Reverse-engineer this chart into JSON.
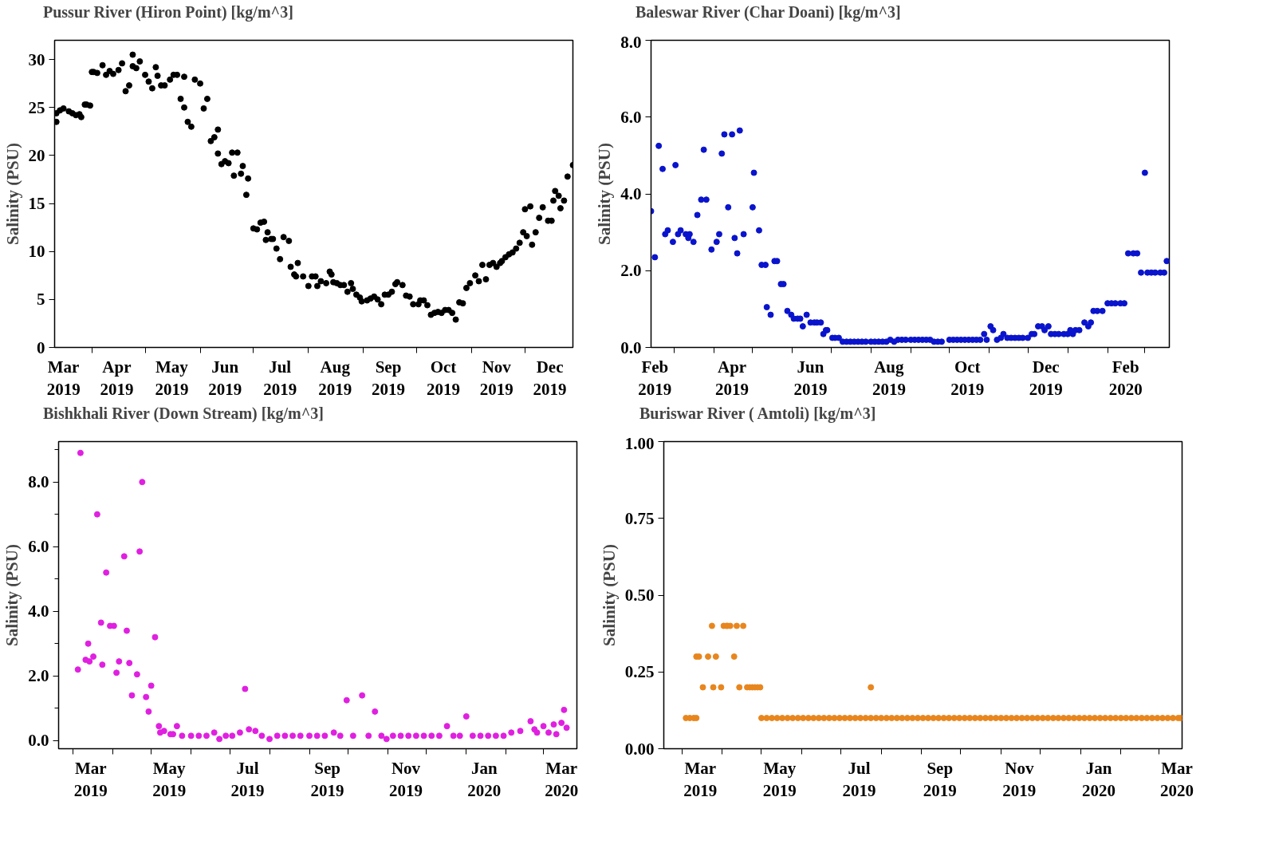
{
  "chart_data": [
    {
      "type": "scatter",
      "ylabel": "Salinity (PSU)",
      "legend": "top",
      "marker": "circle",
      "grid": false,
      "xlim": [
        "2019-03-11",
        "2019-12-28"
      ],
      "ylim": [
        0,
        32
      ],
      "xticks": [
        {
          "value": "2019-03-16",
          "label": "Mar\n2019"
        },
        {
          "value": "2019-04-01",
          "label": null
        },
        {
          "value": "2019-04-15",
          "label": "Apr\n2019"
        },
        {
          "value": "2019-05-01",
          "label": null
        },
        {
          "value": "2019-05-16",
          "label": "May\n2019"
        },
        {
          "value": "2019-06-01",
          "label": null
        },
        {
          "value": "2019-06-15",
          "label": "Jun\n2019"
        },
        {
          "value": "2019-07-01",
          "label": null
        },
        {
          "value": "2019-07-16",
          "label": "Jul\n2019"
        },
        {
          "value": "2019-08-01",
          "label": null
        },
        {
          "value": "2019-08-16",
          "label": "Aug\n2019"
        },
        {
          "value": "2019-09-01",
          "label": null
        },
        {
          "value": "2019-09-15",
          "label": "Sep\n2019"
        },
        {
          "value": "2019-10-01",
          "label": null
        },
        {
          "value": "2019-10-16",
          "label": "Oct\n2019"
        },
        {
          "value": "2019-11-01",
          "label": null
        },
        {
          "value": "2019-11-15",
          "label": "Nov\n2019"
        },
        {
          "value": "2019-12-01",
          "label": null
        },
        {
          "value": "2019-12-15",
          "label": "Dec\n2019"
        }
      ],
      "yticks": [
        0,
        5,
        10,
        15,
        20,
        25,
        30
      ],
      "series": [
        {
          "name": "Pussur River (Hiron Point) [kg/m^3]",
          "color": "#000000",
          "x": [
            "2019-03-12",
            "2019-03-12",
            "2019-03-14",
            "2019-03-16",
            "2019-03-19",
            "2019-03-21",
            "2019-03-23",
            "2019-03-25",
            "2019-03-26",
            "2019-03-28",
            "2019-03-29",
            "2019-03-31",
            "2019-04-01",
            "2019-04-02",
            "2019-04-04",
            "2019-04-07",
            "2019-04-09",
            "2019-04-11",
            "2019-04-13",
            "2019-04-16",
            "2019-04-18",
            "2019-04-20",
            "2019-04-22",
            "2019-04-24",
            "2019-04-24",
            "2019-04-26",
            "2019-04-28",
            "2019-05-01",
            "2019-05-03",
            "2019-05-05",
            "2019-05-07",
            "2019-05-08",
            "2019-05-10",
            "2019-05-12",
            "2019-05-15",
            "2019-05-17",
            "2019-05-19",
            "2019-05-21",
            "2019-05-23",
            "2019-05-23",
            "2019-05-25",
            "2019-05-27",
            "2019-05-29",
            "2019-06-01",
            "2019-06-03",
            "2019-06-05",
            "2019-06-07",
            "2019-06-09",
            "2019-06-11",
            "2019-06-11",
            "2019-06-13",
            "2019-06-15",
            "2019-06-17",
            "2019-06-19",
            "2019-06-20",
            "2019-06-22",
            "2019-06-24",
            "2019-06-25",
            "2019-06-27",
            "2019-06-28",
            "2019-07-01",
            "2019-07-03",
            "2019-07-05",
            "2019-07-07",
            "2019-07-08",
            "2019-07-09",
            "2019-07-11",
            "2019-07-12",
            "2019-07-14",
            "2019-07-16",
            "2019-07-18",
            "2019-07-21",
            "2019-07-22",
            "2019-07-24",
            "2019-07-25",
            "2019-07-26",
            "2019-07-29",
            "2019-08-01",
            "2019-08-03",
            "2019-08-05",
            "2019-08-06",
            "2019-08-08",
            "2019-08-11",
            "2019-08-13",
            "2019-08-14",
            "2019-08-15",
            "2019-08-17",
            "2019-08-19",
            "2019-08-21",
            "2019-08-23",
            "2019-08-25",
            "2019-08-26",
            "2019-08-28",
            "2019-08-30",
            "2019-08-31",
            "2019-09-03",
            "2019-09-05",
            "2019-09-07",
            "2019-09-09",
            "2019-09-11",
            "2019-09-13",
            "2019-09-15",
            "2019-09-17",
            "2019-09-19",
            "2019-09-20",
            "2019-09-23",
            "2019-09-25",
            "2019-09-27",
            "2019-09-29",
            "2019-10-02",
            "2019-10-03",
            "2019-10-05",
            "2019-10-07",
            "2019-10-09",
            "2019-10-11",
            "2019-10-13",
            "2019-10-15",
            "2019-10-17",
            "2019-10-19",
            "2019-10-21",
            "2019-10-23",
            "2019-10-25",
            "2019-10-27",
            "2019-10-29",
            "2019-10-31",
            "2019-11-03",
            "2019-11-05",
            "2019-11-07",
            "2019-11-09",
            "2019-11-11",
            "2019-11-13",
            "2019-11-15",
            "2019-11-17",
            "2019-11-18",
            "2019-11-20",
            "2019-11-22",
            "2019-11-24",
            "2019-11-26",
            "2019-11-28",
            "2019-11-30",
            "2019-12-01",
            "2019-12-02",
            "2019-12-04",
            "2019-12-05",
            "2019-12-07",
            "2019-12-09",
            "2019-12-11",
            "2019-12-14",
            "2019-12-16",
            "2019-12-17",
            "2019-12-18",
            "2019-12-20",
            "2019-12-21",
            "2019-12-23",
            "2019-12-25",
            "2019-12-28"
          ],
          "values": [
            23.5,
            24.4,
            24.7,
            24.9,
            24.6,
            24.4,
            24.2,
            24.3,
            24.0,
            25.3,
            25.3,
            25.2,
            28.7,
            28.7,
            28.6,
            29.4,
            28.4,
            28.8,
            28.5,
            28.9,
            29.6,
            26.7,
            27.3,
            30.5,
            29.3,
            29.1,
            29.8,
            28.4,
            27.7,
            27.0,
            29.2,
            28.3,
            27.3,
            27.3,
            27.9,
            28.4,
            28.4,
            25.9,
            25.0,
            28.2,
            23.5,
            23.0,
            27.9,
            27.5,
            24.9,
            25.9,
            21.5,
            21.9,
            22.7,
            20.2,
            19.1,
            19.4,
            19.2,
            20.3,
            17.9,
            20.3,
            18.1,
            18.9,
            15.9,
            17.6,
            12.4,
            12.3,
            13.0,
            13.1,
            11.2,
            12.0,
            11.3,
            11.3,
            10.3,
            9.2,
            11.5,
            11.1,
            8.4,
            7.6,
            7.4,
            8.8,
            7.4,
            6.4,
            7.4,
            7.4,
            6.4,
            6.9,
            6.7,
            7.9,
            7.6,
            6.8,
            6.7,
            6.5,
            6.5,
            5.8,
            6.7,
            6.1,
            5.5,
            5.2,
            4.8,
            4.9,
            5.1,
            5.3,
            5.0,
            4.5,
            5.5,
            5.5,
            5.8,
            6.6,
            6.8,
            6.5,
            5.4,
            5.3,
            4.5,
            4.5,
            4.9,
            4.9,
            4.4,
            3.4,
            3.6,
            3.7,
            3.6,
            3.9,
            3.9,
            3.6,
            2.9,
            4.7,
            4.6,
            6.2,
            6.7,
            7.5,
            6.9,
            8.6,
            7.1,
            8.6,
            8.8,
            8.4,
            8.8,
            9.0,
            9.4,
            9.7,
            9.9,
            10.3,
            10.9,
            12.0,
            14.4,
            11.6,
            14.7,
            10.7,
            12.0,
            13.5,
            14.6,
            13.2,
            13.2,
            15.3,
            16.3,
            15.8,
            14.5,
            15.3,
            17.8,
            19.0
          ]
        }
      ]
    },
    {
      "type": "scatter",
      "ylabel": "Salinity (PSU)",
      "legend": "top",
      "marker": "circle",
      "grid": false,
      "xlim": [
        "2019-02-11",
        "2020-03-20"
      ],
      "ylim": [
        0,
        8
      ],
      "xticks": [
        {
          "value": "2019-02-14",
          "label": "Feb\n2019"
        },
        {
          "value": "2019-03-01",
          "label": null
        },
        {
          "value": "2019-04-01",
          "label": null
        },
        {
          "value": "2019-04-15",
          "label": "Apr\n2019"
        },
        {
          "value": "2019-05-01",
          "label": null
        },
        {
          "value": "2019-06-01",
          "label": null
        },
        {
          "value": "2019-06-15",
          "label": "Jun\n2019"
        },
        {
          "value": "2019-07-01",
          "label": null
        },
        {
          "value": "2019-08-01",
          "label": null
        },
        {
          "value": "2019-08-15",
          "label": "Aug\n2019"
        },
        {
          "value": "2019-09-01",
          "label": null
        },
        {
          "value": "2019-10-01",
          "label": null
        },
        {
          "value": "2019-10-15",
          "label": "Oct\n2019"
        },
        {
          "value": "2019-11-01",
          "label": null
        },
        {
          "value": "2019-12-01",
          "label": null
        },
        {
          "value": "2019-12-15",
          "label": "Dec\n2019"
        },
        {
          "value": "2020-01-01",
          "label": null
        },
        {
          "value": "2020-02-01",
          "label": null
        },
        {
          "value": "2020-02-15",
          "label": "Feb\n2020"
        },
        {
          "value": "2020-03-01",
          "label": null
        }
      ],
      "yticks": [
        {
          "value": 0,
          "label": "0.0"
        },
        {
          "value": 2,
          "label": "2.0"
        },
        {
          "value": 4,
          "label": "4.0"
        },
        {
          "value": 6,
          "label": "6.0"
        },
        {
          "value": 8,
          "label": "8.0"
        }
      ],
      "series": [
        {
          "name": "Baleswar River (Char Doani) [kg/m^3]",
          "color": "#0a14cc",
          "x": [
            "2019-02-11",
            "2019-02-14",
            "2019-02-17",
            "2019-02-20",
            "2019-02-22",
            "2019-02-24",
            "2019-02-28",
            "2019-03-02",
            "2019-03-04",
            "2019-03-06",
            "2019-03-10",
            "2019-03-12",
            "2019-03-13",
            "2019-03-16",
            "2019-03-19",
            "2019-03-22",
            "2019-03-24",
            "2019-03-26",
            "2019-03-30",
            "2019-04-03",
            "2019-04-05",
            "2019-04-07",
            "2019-04-09",
            "2019-04-12",
            "2019-04-15",
            "2019-04-17",
            "2019-04-19",
            "2019-04-21",
            "2019-04-24",
            "2019-05-01",
            "2019-05-02",
            "2019-05-06",
            "2019-05-08",
            "2019-05-11",
            "2019-05-12",
            "2019-05-15",
            "2019-05-18",
            "2019-05-20",
            "2019-05-23",
            "2019-05-25",
            "2019-05-28",
            "2019-05-31",
            "2019-06-02",
            "2019-06-05",
            "2019-06-07",
            "2019-06-09",
            "2019-06-12",
            "2019-06-15",
            "2019-06-18",
            "2019-06-20",
            "2019-06-23",
            "2019-06-25",
            "2019-06-27",
            "2019-06-28",
            "2019-07-02",
            "2019-07-04",
            "2019-07-07",
            "2019-07-10",
            "2019-07-13",
            "2019-07-16",
            "2019-07-19",
            "2019-07-22",
            "2019-07-25",
            "2019-07-28",
            "2019-08-01",
            "2019-08-04",
            "2019-08-07",
            "2019-08-10",
            "2019-08-13",
            "2019-08-16",
            "2019-08-19",
            "2019-08-22",
            "2019-08-25",
            "2019-08-28",
            "2019-09-01",
            "2019-09-04",
            "2019-09-07",
            "2019-09-10",
            "2019-09-13",
            "2019-09-16",
            "2019-09-19",
            "2019-09-22",
            "2019-09-25",
            "2019-10-01",
            "2019-10-04",
            "2019-10-07",
            "2019-10-10",
            "2019-10-13",
            "2019-10-16",
            "2019-10-19",
            "2019-10-22",
            "2019-10-25",
            "2019-10-28",
            "2019-10-30",
            "2019-11-02",
            "2019-11-04",
            "2019-11-07",
            "2019-11-10",
            "2019-11-12",
            "2019-11-15",
            "2019-11-18",
            "2019-11-21",
            "2019-11-24",
            "2019-11-27",
            "2019-12-01",
            "2019-12-04",
            "2019-12-06",
            "2019-12-09",
            "2019-12-12",
            "2019-12-14",
            "2019-12-17",
            "2019-12-19",
            "2019-12-22",
            "2019-12-25",
            "2019-12-29",
            "2020-01-01",
            "2020-01-03",
            "2020-01-05",
            "2020-01-07",
            "2020-01-10",
            "2020-01-14",
            "2020-01-17",
            "2020-01-19",
            "2020-01-21",
            "2020-01-24",
            "2020-01-28",
            "2020-02-01",
            "2020-02-04",
            "2020-02-07",
            "2020-02-11",
            "2020-02-14",
            "2020-02-17",
            "2020-02-21",
            "2020-02-24",
            "2020-02-27",
            "2020-03-01",
            "2020-03-03",
            "2020-03-06",
            "2020-03-09",
            "2020-03-13",
            "2020-03-16",
            "2020-03-18"
          ],
          "values": [
            3.55,
            2.35,
            5.25,
            4.65,
            2.95,
            3.05,
            2.75,
            4.75,
            2.95,
            3.05,
            2.95,
            2.85,
            2.95,
            2.75,
            3.45,
            3.85,
            5.15,
            3.85,
            2.55,
            2.75,
            2.95,
            5.05,
            5.55,
            3.65,
            5.55,
            2.85,
            2.45,
            5.65,
            2.95,
            3.65,
            4.55,
            3.05,
            2.15,
            2.15,
            1.05,
            0.85,
            2.25,
            2.25,
            1.65,
            1.65,
            0.95,
            0.85,
            0.75,
            0.75,
            0.75,
            0.55,
            0.85,
            0.65,
            0.65,
            0.65,
            0.65,
            0.35,
            0.45,
            0.45,
            0.25,
            0.25,
            0.25,
            0.15,
            0.15,
            0.15,
            0.15,
            0.15,
            0.15,
            0.15,
            0.15,
            0.15,
            0.15,
            0.15,
            0.15,
            0.2,
            0.15,
            0.2,
            0.2,
            0.2,
            0.2,
            0.2,
            0.2,
            0.2,
            0.2,
            0.2,
            0.15,
            0.15,
            0.15,
            0.2,
            0.2,
            0.2,
            0.2,
            0.2,
            0.2,
            0.2,
            0.2,
            0.2,
            0.35,
            0.2,
            0.55,
            0.45,
            0.2,
            0.25,
            0.35,
            0.25,
            0.25,
            0.25,
            0.25,
            0.25,
            0.25,
            0.35,
            0.35,
            0.55,
            0.55,
            0.45,
            0.55,
            0.35,
            0.35,
            0.35,
            0.35,
            0.35,
            0.45,
            0.35,
            0.45,
            0.45,
            0.65,
            0.55,
            0.65,
            0.95,
            0.95,
            0.95,
            1.15,
            1.15,
            1.15,
            1.15,
            1.15,
            2.45,
            2.45,
            2.45,
            1.95,
            4.55,
            1.95,
            1.95,
            1.95,
            1.95,
            1.95,
            2.25
          ]
        }
      ]
    },
    {
      "type": "scatter",
      "ylabel": "Salinity (PSU)",
      "legend": "top",
      "marker": "circle",
      "grid": false,
      "xlim": [
        "2019-02-18",
        "2020-03-27"
      ],
      "ylim": [
        -0.25,
        9.25
      ],
      "xticks": [
        {
          "value": "2019-03-01",
          "label": null
        },
        {
          "value": "2019-03-15",
          "label": "Mar\n2019"
        },
        {
          "value": "2019-04-01",
          "label": null
        },
        {
          "value": "2019-05-01",
          "label": null
        },
        {
          "value": "2019-05-15",
          "label": "May\n2019"
        },
        {
          "value": "2019-06-01",
          "label": null
        },
        {
          "value": "2019-07-01",
          "label": null
        },
        {
          "value": "2019-07-15",
          "label": "Jul\n2019"
        },
        {
          "value": "2019-08-01",
          "label": null
        },
        {
          "value": "2019-09-01",
          "label": null
        },
        {
          "value": "2019-09-15",
          "label": "Sep\n2019"
        },
        {
          "value": "2019-10-01",
          "label": null
        },
        {
          "value": "2019-11-01",
          "label": null
        },
        {
          "value": "2019-11-15",
          "label": "Nov\n2019"
        },
        {
          "value": "2019-12-01",
          "label": null
        },
        {
          "value": "2020-01-01",
          "label": null
        },
        {
          "value": "2020-01-15",
          "label": "Jan\n2020"
        },
        {
          "value": "2020-02-01",
          "label": null
        },
        {
          "value": "2020-03-01",
          "label": null
        },
        {
          "value": "2020-03-15",
          "label": "Mar\n2020"
        }
      ],
      "yticks": [
        {
          "value": 0,
          "label": "0.0"
        },
        {
          "value": 1,
          "label": null
        },
        {
          "value": 2,
          "label": "2.0"
        },
        {
          "value": 3,
          "label": null
        },
        {
          "value": 4,
          "label": "4.0"
        },
        {
          "value": 5,
          "label": null
        },
        {
          "value": 6,
          "label": "6.0"
        },
        {
          "value": 7,
          "label": null
        },
        {
          "value": 8,
          "label": "8.0"
        },
        {
          "value": 9,
          "label": null
        }
      ],
      "series": [
        {
          "name": "Bishkhali River (Down Stream) [kg/m^3]",
          "color": "#e020e0",
          "x": [
            "2019-03-05",
            "2019-03-07",
            "2019-03-11",
            "2019-03-13",
            "2019-03-14",
            "2019-03-17",
            "2019-03-20",
            "2019-03-23",
            "2019-03-24",
            "2019-03-27",
            "2019-03-30",
            "2019-04-02",
            "2019-04-04",
            "2019-04-06",
            "2019-04-10",
            "2019-04-12",
            "2019-04-14",
            "2019-04-16",
            "2019-04-20",
            "2019-04-22",
            "2019-04-24",
            "2019-04-27",
            "2019-04-29",
            "2019-05-01",
            "2019-05-04",
            "2019-05-07",
            "2019-05-08",
            "2019-05-11",
            "2019-05-16",
            "2019-05-18",
            "2019-05-21",
            "2019-05-25",
            "2019-06-01",
            "2019-06-07",
            "2019-06-13",
            "2019-06-19",
            "2019-06-23",
            "2019-06-28",
            "2019-07-03",
            "2019-07-09",
            "2019-07-13",
            "2019-07-16",
            "2019-07-21",
            "2019-07-26",
            "2019-08-01",
            "2019-08-07",
            "2019-08-13",
            "2019-08-19",
            "2019-08-25",
            "2019-09-01",
            "2019-09-07",
            "2019-09-13",
            "2019-09-20",
            "2019-09-25",
            "2019-09-30",
            "2019-10-05",
            "2019-10-12",
            "2019-10-17",
            "2019-10-22",
            "2019-10-27",
            "2019-10-31",
            "2019-11-05",
            "2019-11-11",
            "2019-11-17",
            "2019-11-23",
            "2019-11-29",
            "2019-12-05",
            "2019-12-11",
            "2019-12-17",
            "2019-12-22",
            "2019-12-27",
            "2020-01-01",
            "2020-01-06",
            "2020-01-12",
            "2020-01-18",
            "2020-01-24",
            "2020-01-30",
            "2020-02-05",
            "2020-02-12",
            "2020-02-20",
            "2020-02-23",
            "2020-02-25",
            "2020-03-01",
            "2020-03-05",
            "2020-03-09",
            "2020-03-11",
            "2020-03-15",
            "2020-03-17",
            "2020-03-19"
          ],
          "values": [
            2.2,
            8.9,
            2.5,
            3.0,
            2.45,
            2.6,
            7.0,
            3.65,
            2.35,
            5.2,
            3.55,
            3.55,
            2.1,
            2.45,
            5.7,
            3.4,
            2.4,
            1.4,
            2.05,
            5.85,
            8.0,
            1.35,
            0.9,
            1.7,
            3.2,
            0.45,
            0.25,
            0.3,
            0.2,
            0.2,
            0.45,
            0.15,
            0.15,
            0.15,
            0.15,
            0.25,
            0.05,
            0.15,
            0.15,
            0.25,
            1.6,
            0.35,
            0.3,
            0.15,
            0.05,
            0.15,
            0.15,
            0.15,
            0.15,
            0.15,
            0.15,
            0.15,
            0.25,
            0.15,
            1.25,
            0.15,
            1.4,
            0.15,
            0.9,
            0.15,
            0.05,
            0.15,
            0.15,
            0.15,
            0.15,
            0.15,
            0.15,
            0.15,
            0.45,
            0.15,
            0.15,
            0.75,
            0.15,
            0.15,
            0.15,
            0.15,
            0.15,
            0.25,
            0.3,
            0.6,
            0.35,
            0.25,
            0.45,
            0.25,
            0.5,
            0.2,
            0.55,
            0.95,
            0.4
          ]
        }
      ]
    },
    {
      "type": "scatter",
      "ylabel": "Salinity (PSU)",
      "legend": "top",
      "marker": "circle",
      "grid": false,
      "xlim": [
        "2019-02-15",
        "2020-03-19"
      ],
      "ylim": [
        0,
        1
      ],
      "xticks": [
        {
          "value": "2019-03-01",
          "label": null
        },
        {
          "value": "2019-03-15",
          "label": "Mar\n2019"
        },
        {
          "value": "2019-04-01",
          "label": null
        },
        {
          "value": "2019-05-01",
          "label": null
        },
        {
          "value": "2019-05-15",
          "label": "May\n2019"
        },
        {
          "value": "2019-06-01",
          "label": null
        },
        {
          "value": "2019-07-01",
          "label": null
        },
        {
          "value": "2019-07-15",
          "label": "Jul\n2019"
        },
        {
          "value": "2019-08-01",
          "label": null
        },
        {
          "value": "2019-09-01",
          "label": null
        },
        {
          "value": "2019-09-15",
          "label": "Sep\n2019"
        },
        {
          "value": "2019-10-01",
          "label": null
        },
        {
          "value": "2019-11-01",
          "label": null
        },
        {
          "value": "2019-11-15",
          "label": "Nov\n2019"
        },
        {
          "value": "2019-12-01",
          "label": null
        },
        {
          "value": "2020-01-01",
          "label": null
        },
        {
          "value": "2020-01-15",
          "label": "Jan\n2020"
        },
        {
          "value": "2020-02-01",
          "label": null
        },
        {
          "value": "2020-03-01",
          "label": null
        },
        {
          "value": "2020-03-15",
          "label": "Mar\n2020"
        }
      ],
      "yticks": [
        {
          "value": 0,
          "label": "0.00"
        },
        0.25,
        {
          "value": 0.5,
          "label": "0.50"
        },
        0.75,
        {
          "value": 1,
          "label": "1.00"
        }
      ],
      "series": [
        {
          "name": "Buriswar River ( Amtoli) [kg/m^3]",
          "color": "#e8861e",
          "x": [
            "2019-03-04",
            "2019-03-07",
            "2019-03-10",
            "2019-03-12",
            "2019-03-12",
            "2019-03-14",
            "2019-03-17",
            "2019-03-21",
            "2019-03-24",
            "2019-03-25",
            "2019-03-27",
            "2019-03-31",
            "2019-04-02",
            "2019-04-04",
            "2019-04-05",
            "2019-04-07",
            "2019-04-10",
            "2019-04-12",
            "2019-04-14",
            "2019-04-17",
            "2019-04-20",
            "2019-04-22",
            "2019-04-24",
            "2019-04-26",
            "2019-04-28",
            "2019-04-30",
            "2019-05-01",
            "2019-05-05",
            "2019-05-09",
            "2019-05-13",
            "2019-05-17",
            "2019-05-21",
            "2019-05-25",
            "2019-05-29",
            "2019-06-02",
            "2019-06-06",
            "2019-06-10",
            "2019-06-14",
            "2019-06-18",
            "2019-06-22",
            "2019-06-26",
            "2019-06-30",
            "2019-07-04",
            "2019-07-08",
            "2019-07-12",
            "2019-07-16",
            "2019-07-20",
            "2019-07-24",
            "2019-07-24",
            "2019-07-28",
            "2019-08-01",
            "2019-08-05",
            "2019-08-09",
            "2019-08-13",
            "2019-08-17",
            "2019-08-21",
            "2019-08-25",
            "2019-08-29",
            "2019-09-02",
            "2019-09-06",
            "2019-09-10",
            "2019-09-14",
            "2019-09-18",
            "2019-09-22",
            "2019-09-26",
            "2019-09-30",
            "2019-10-04",
            "2019-10-08",
            "2019-10-12",
            "2019-10-16",
            "2019-10-20",
            "2019-10-24",
            "2019-10-28",
            "2019-11-01",
            "2019-11-05",
            "2019-11-09",
            "2019-11-13",
            "2019-11-17",
            "2019-11-21",
            "2019-11-25",
            "2019-11-29",
            "2019-12-03",
            "2019-12-07",
            "2019-12-11",
            "2019-12-15",
            "2019-12-19",
            "2019-12-23",
            "2019-12-27",
            "2019-12-31",
            "2020-01-04",
            "2020-01-08",
            "2020-01-12",
            "2020-01-16",
            "2020-01-20",
            "2020-01-24",
            "2020-01-28",
            "2020-02-01",
            "2020-02-05",
            "2020-02-09",
            "2020-02-13",
            "2020-02-17",
            "2020-02-21",
            "2020-02-25",
            "2020-02-29",
            "2020-03-04",
            "2020-03-08",
            "2020-03-12",
            "2020-03-16",
            "2020-03-18"
          ],
          "values": [
            0.1,
            0.1,
            0.1,
            0.1,
            0.3,
            0.3,
            0.2,
            0.3,
            0.4,
            0.2,
            0.3,
            0.2,
            0.4,
            0.4,
            0.4,
            0.4,
            0.3,
            0.4,
            0.2,
            0.4,
            0.2,
            0.2,
            0.2,
            0.2,
            0.2,
            0.2,
            0.1,
            0.1,
            0.1,
            0.1,
            0.1,
            0.1,
            0.1,
            0.1,
            0.1,
            0.1,
            0.1,
            0.1,
            0.1,
            0.1,
            0.1,
            0.1,
            0.1,
            0.1,
            0.1,
            0.1,
            0.1,
            0.1,
            0.2,
            0.1,
            0.1,
            0.1,
            0.1,
            0.1,
            0.1,
            0.1,
            0.1,
            0.1,
            0.1,
            0.1,
            0.1,
            0.1,
            0.1,
            0.1,
            0.1,
            0.1,
            0.1,
            0.1,
            0.1,
            0.1,
            0.1,
            0.1,
            0.1,
            0.1,
            0.1,
            0.1,
            0.1,
            0.1,
            0.1,
            0.1,
            0.1,
            0.1,
            0.1,
            0.1,
            0.1,
            0.1,
            0.1,
            0.1,
            0.1,
            0.1,
            0.1,
            0.1,
            0.1,
            0.1,
            0.1,
            0.1,
            0.1,
            0.1,
            0.1,
            0.1,
            0.1,
            0.1,
            0.1,
            0.1,
            0.1,
            0.1,
            0.1,
            0.1,
            0.1
          ]
        }
      ]
    }
  ]
}
